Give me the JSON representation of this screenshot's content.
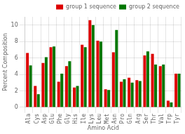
{
  "chart_data": {
    "type": "bar",
    "categories": [
      "Ala",
      "Cys",
      "Asp",
      "Glu",
      "Phe",
      "Gly",
      "His",
      "Ile",
      "Lys",
      "Leu",
      "Met",
      "Asn",
      "Pro",
      "Gln",
      "Arg",
      "Ser",
      "Thr",
      "Val",
      "Trp",
      "Tyr"
    ],
    "series": [
      {
        "name": "group 1 sequence",
        "color": "#dd0000",
        "values": [
          6.6,
          2.6,
          5.4,
          7.3,
          3.1,
          5.0,
          2.4,
          7.6,
          10.6,
          8.1,
          2.2,
          6.7,
          3.1,
          3.6,
          3.3,
          6.3,
          6.5,
          5.0,
          0.8,
          4.1
        ]
      },
      {
        "name": "group 2 sequence",
        "color": "#007700",
        "values": [
          5.1,
          1.6,
          6.1,
          7.4,
          4.1,
          5.6,
          2.6,
          7.3,
          10.0,
          8.0,
          2.1,
          9.4,
          3.4,
          3.0,
          3.2,
          6.8,
          5.2,
          5.2,
          0.6,
          4.1
        ]
      }
    ],
    "xlabel": "Amino Acid",
    "ylabel": "Percent Composition",
    "ylim": [
      0,
      11
    ],
    "yticks": [
      0,
      2,
      4,
      6,
      8,
      10
    ],
    "grid": true,
    "legend": "upper right"
  }
}
